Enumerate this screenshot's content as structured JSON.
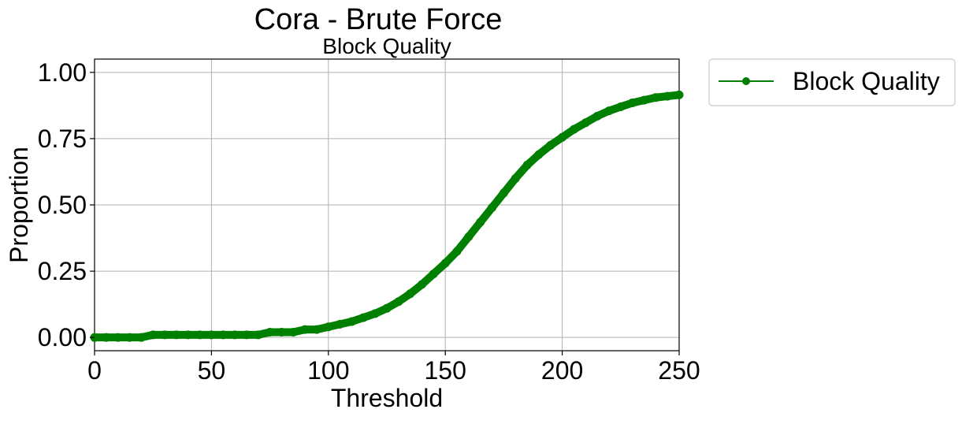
{
  "chart_data": {
    "type": "line",
    "title": "Cora - Brute Force",
    "subtitle": "Block Quality",
    "xlabel": "Threshold",
    "ylabel": "Proportion",
    "xlim": [
      0,
      250
    ],
    "ylim": [
      -0.05,
      1.05
    ],
    "xticks": [
      0,
      50,
      100,
      150,
      200,
      250
    ],
    "xtick_labels": [
      "0",
      "50",
      "100",
      "150",
      "200",
      "250"
    ],
    "yticks": [
      0,
      0.25,
      0.5,
      0.75,
      1.0
    ],
    "ytick_labels": [
      "0.00",
      "0.25",
      "0.50",
      "0.75",
      "1.00"
    ],
    "grid": true,
    "legend_position": "outside-top-right",
    "series": [
      {
        "name": "Block Quality",
        "color": "#008000",
        "marker": "circle",
        "x": [
          0,
          5,
          10,
          15,
          20,
          25,
          30,
          35,
          40,
          45,
          50,
          55,
          60,
          65,
          70,
          75,
          80,
          85,
          90,
          95,
          100,
          105,
          110,
          115,
          120,
          125,
          130,
          135,
          140,
          145,
          150,
          155,
          160,
          165,
          170,
          175,
          180,
          185,
          190,
          195,
          200,
          205,
          210,
          215,
          220,
          225,
          230,
          235,
          240,
          245,
          250
        ],
        "y": [
          0,
          0,
          0,
          0,
          0,
          0.01,
          0.01,
          0.01,
          0.01,
          0.01,
          0.01,
          0.01,
          0.01,
          0.01,
          0.01,
          0.02,
          0.02,
          0.02,
          0.03,
          0.03,
          0.04,
          0.05,
          0.06,
          0.075,
          0.09,
          0.11,
          0.135,
          0.165,
          0.2,
          0.24,
          0.28,
          0.325,
          0.38,
          0.435,
          0.49,
          0.545,
          0.6,
          0.65,
          0.69,
          0.725,
          0.755,
          0.785,
          0.81,
          0.835,
          0.855,
          0.87,
          0.885,
          0.895,
          0.905,
          0.91,
          0.915
        ]
      }
    ]
  }
}
